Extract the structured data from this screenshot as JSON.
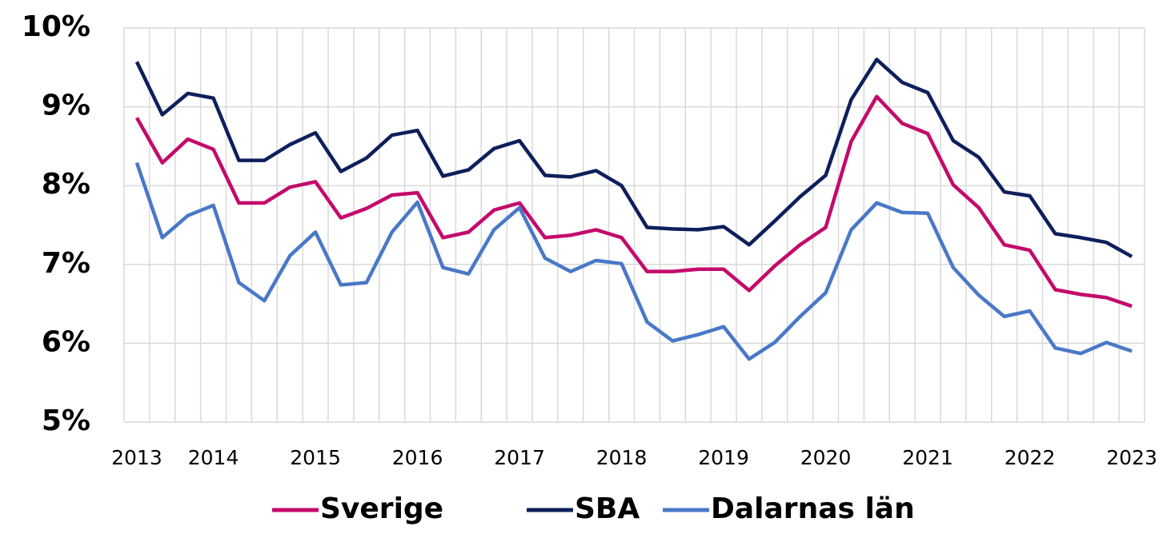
{
  "chart_data": {
    "type": "line",
    "categories": [
      "2013",
      null,
      null,
      "2014",
      null,
      null,
      null,
      "2015",
      null,
      null,
      null,
      "2016",
      null,
      null,
      null,
      "2017",
      null,
      null,
      null,
      "2018",
      null,
      null,
      null,
      "2019",
      null,
      null,
      null,
      "2020",
      null,
      null,
      null,
      "2021",
      null,
      null,
      null,
      "2022",
      null,
      null,
      null,
      "2023"
    ],
    "series": [
      {
        "name": "Sverige",
        "color": "#c40a6b",
        "values": [
          8.86,
          8.29,
          8.59,
          8.46,
          7.78,
          7.78,
          7.98,
          8.05,
          7.59,
          7.71,
          7.88,
          7.91,
          7.34,
          7.41,
          7.69,
          7.78,
          7.34,
          7.37,
          7.44,
          7.34,
          6.91,
          6.91,
          6.94,
          6.94,
          6.67,
          6.98,
          7.25,
          7.47,
          8.56,
          9.13,
          8.79,
          8.66,
          8.01,
          7.72,
          7.25,
          7.18,
          6.68,
          6.62,
          6.58,
          6.47
        ]
      },
      {
        "name": "SBA",
        "color": "#0e1f5b",
        "values": [
          9.57,
          8.9,
          9.17,
          9.11,
          8.32,
          8.32,
          8.52,
          8.67,
          8.18,
          8.35,
          8.64,
          8.7,
          8.12,
          8.2,
          8.47,
          8.57,
          8.13,
          8.11,
          8.19,
          8.0,
          7.47,
          7.45,
          7.44,
          7.48,
          7.25,
          7.55,
          7.86,
          8.13,
          9.09,
          9.6,
          9.31,
          9.18,
          8.57,
          8.36,
          7.92,
          7.87,
          7.39,
          7.34,
          7.28,
          7.1
        ]
      },
      {
        "name": "Dalarnas län",
        "color": "#4a78c8",
        "values": [
          8.29,
          7.34,
          7.62,
          7.75,
          6.77,
          6.54,
          7.11,
          7.41,
          6.74,
          6.77,
          7.41,
          7.79,
          6.96,
          6.88,
          7.44,
          7.72,
          7.08,
          6.91,
          7.05,
          7.01,
          6.27,
          6.03,
          6.11,
          6.21,
          5.8,
          6.01,
          6.34,
          6.64,
          7.44,
          7.78,
          7.66,
          7.65,
          6.96,
          6.61,
          6.34,
          6.41,
          5.94,
          5.87,
          6.01,
          5.9
        ]
      }
    ],
    "ylim": [
      5,
      10
    ],
    "yticks": [
      {
        "value": 5,
        "label": "5%"
      },
      {
        "value": 6,
        "label": "6%"
      },
      {
        "value": 7,
        "label": "7%"
      },
      {
        "value": 8,
        "label": "8%"
      },
      {
        "value": 9,
        "label": "9%"
      },
      {
        "value": 10,
        "label": "10%"
      }
    ],
    "grid": true,
    "legend": "bottom"
  }
}
